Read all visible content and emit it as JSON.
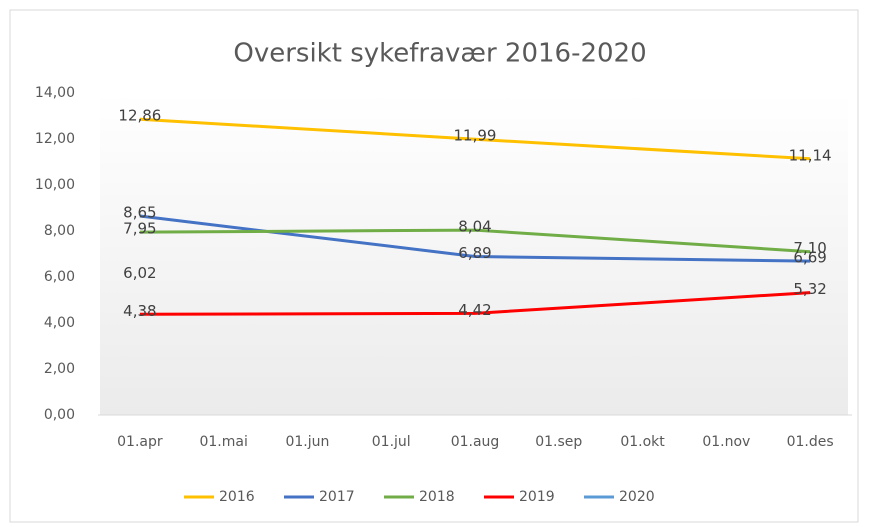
{
  "chart_data": {
    "type": "line",
    "title": "Oversikt sykefravær 2016-2020",
    "categories": [
      "01.apr",
      "01.mai",
      "01.jun",
      "01.jul",
      "01.aug",
      "01.sep",
      "01.okt",
      "01.nov",
      "01.des"
    ],
    "connect_gaps": true,
    "series": [
      {
        "name": "2016",
        "color": "#ffc000",
        "values": [
          12.86,
          null,
          null,
          null,
          11.99,
          null,
          null,
          null,
          11.14
        ],
        "value_labels": [
          "12,86",
          null,
          null,
          null,
          "11,99",
          null,
          null,
          null,
          "11,14"
        ]
      },
      {
        "name": "2017",
        "color": "#4472c4",
        "values": [
          8.65,
          null,
          null,
          null,
          6.89,
          null,
          null,
          null,
          6.69
        ],
        "value_labels": [
          "8,65",
          null,
          null,
          null,
          "6,89",
          null,
          null,
          null,
          "6,69"
        ]
      },
      {
        "name": "2018",
        "color": "#70ad47",
        "values": [
          7.95,
          null,
          null,
          null,
          8.04,
          null,
          null,
          null,
          7.1
        ],
        "value_labels": [
          "7,95",
          null,
          null,
          null,
          "8,04",
          null,
          null,
          null,
          "7,10"
        ]
      },
      {
        "name": "2019",
        "color": "#ff0000",
        "values": [
          4.38,
          null,
          null,
          null,
          4.42,
          null,
          null,
          null,
          5.32
        ],
        "value_labels": [
          "4,38",
          null,
          null,
          null,
          "4,42",
          null,
          null,
          null,
          "5,32"
        ]
      },
      {
        "name": "2020",
        "color": "#5b9bd5",
        "values": [
          6.02,
          null,
          null,
          null,
          null,
          null,
          null,
          null,
          null
        ],
        "value_labels": [
          "6,02",
          null,
          null,
          null,
          null,
          null,
          null,
          null,
          null
        ]
      }
    ],
    "ylim": [
      0,
      14
    ],
    "yticks": [
      {
        "value": 0,
        "label": "0,00"
      },
      {
        "value": 2,
        "label": "2,00"
      },
      {
        "value": 4,
        "label": "4,00"
      },
      {
        "value": 6,
        "label": "6,00"
      },
      {
        "value": 8,
        "label": "8,00"
      },
      {
        "value": 10,
        "label": "10,00"
      },
      {
        "value": 12,
        "label": "12,00"
      },
      {
        "value": 14,
        "label": "14,00"
      }
    ],
    "legend": "bottom"
  }
}
